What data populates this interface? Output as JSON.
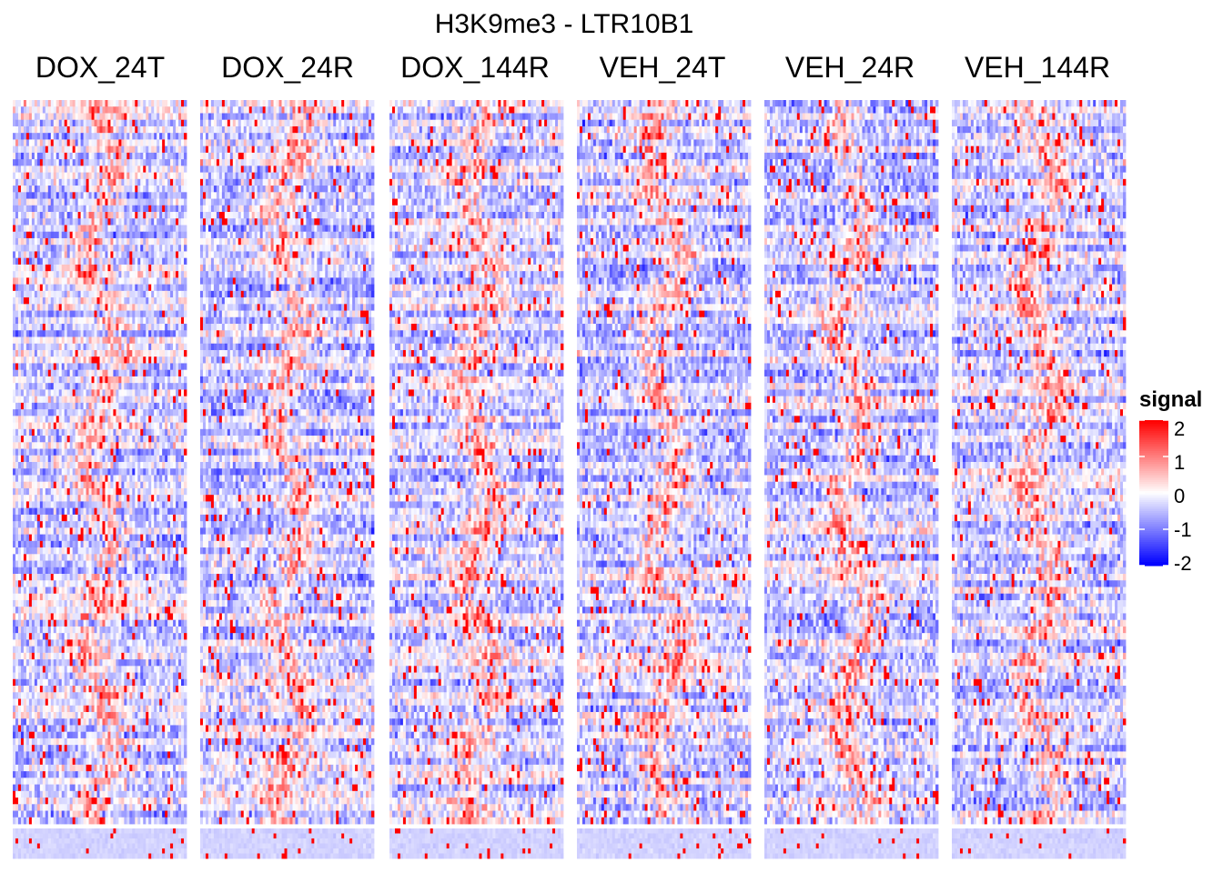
{
  "chart_data": {
    "type": "heatmap",
    "title": "H3K9me3 - LTR10B1",
    "panels": [
      "DOX_24T",
      "DOX_24R",
      "DOX_144R",
      "VEH_24T",
      "VEH_24R",
      "VEH_144R"
    ],
    "value_range": [
      -2,
      2
    ],
    "color_scale": {
      "low": "#0000ff",
      "mid": "#ffffff",
      "high": "#ff0000"
    },
    "legend": {
      "title": "signal",
      "ticks": [
        "2",
        "1",
        "0",
        "-1",
        "-2"
      ],
      "tick_values": [
        2,
        1,
        0,
        -1,
        -2
      ],
      "position": "right"
    },
    "row_groups": [
      {
        "label": "",
        "rows_visible": "many"
      },
      {
        "label": "",
        "rows_visible": "few"
      }
    ],
    "pattern": "enriched signal near the centre of each row, diffuse background elsewhere"
  }
}
